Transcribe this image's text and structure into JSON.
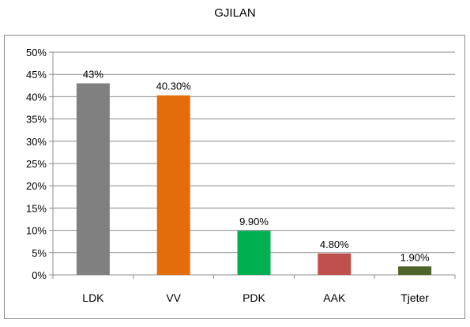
{
  "chart_data": {
    "type": "bar",
    "title": "GJILAN",
    "categories": [
      "LDK",
      "VV",
      "PDK",
      "AAK",
      "Tjeter"
    ],
    "values": [
      43,
      40.3,
      9.9,
      4.8,
      1.9
    ],
    "data_labels": [
      "43%",
      "40.30%",
      "9.90%",
      "4.80%",
      "1.90%"
    ],
    "colors": [
      "#808080",
      "#e46c0a",
      "#00b050",
      "#c0504d",
      "#4f6228"
    ],
    "ylim": [
      0,
      50
    ],
    "yticks": [
      0,
      5,
      10,
      15,
      20,
      25,
      30,
      35,
      40,
      45,
      50
    ],
    "ytick_labels": [
      "0%",
      "5%",
      "10%",
      "15%",
      "20%",
      "25%",
      "30%",
      "35%",
      "40%",
      "45%",
      "50%"
    ],
    "xlabel": "",
    "ylabel": "",
    "grid": true,
    "legend": false
  }
}
